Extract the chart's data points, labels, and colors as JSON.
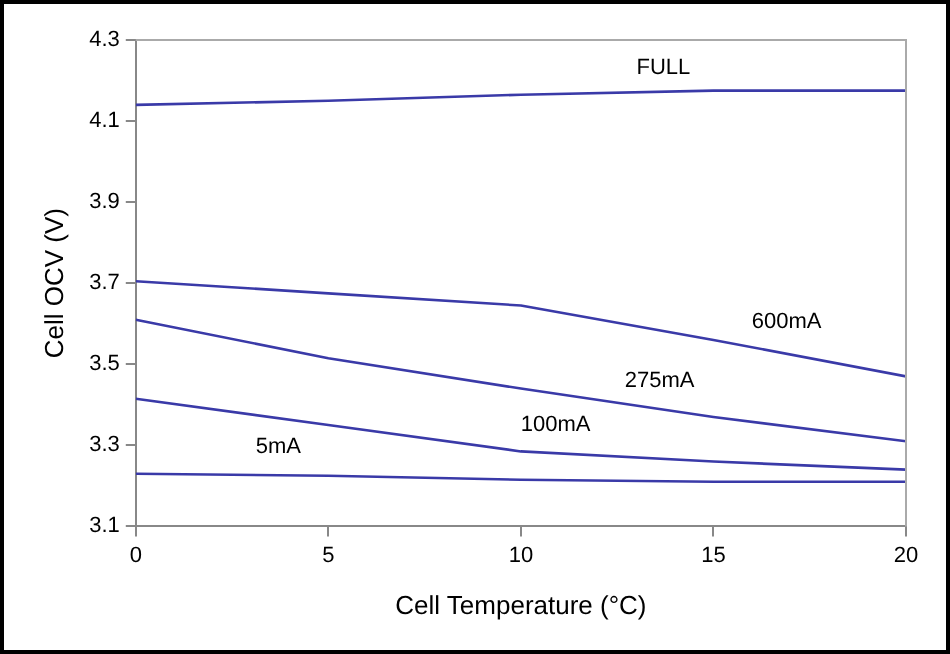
{
  "chart_data": {
    "type": "line",
    "xlabel": "Cell Temperature (°C)",
    "ylabel": "Cell OCV (V)",
    "x": [
      0,
      5,
      10,
      15,
      20
    ],
    "series": [
      {
        "name": "FULL",
        "color": "#3a3aa8",
        "values": [
          4.14,
          4.15,
          4.165,
          4.175,
          4.175
        ]
      },
      {
        "name": "600mA",
        "color": "#3a3aa8",
        "values": [
          3.705,
          3.675,
          3.645,
          3.56,
          3.47
        ]
      },
      {
        "name": "275mA",
        "color": "#3a3aa8",
        "values": [
          3.61,
          3.515,
          3.44,
          3.37,
          3.31
        ]
      },
      {
        "name": "100mA",
        "color": "#3a3aa8",
        "values": [
          3.415,
          3.35,
          3.285,
          3.26,
          3.24
        ]
      },
      {
        "name": "5mA",
        "color": "#3a3aa8",
        "values": [
          3.23,
          3.225,
          3.215,
          3.21,
          3.21
        ]
      }
    ],
    "xlim": [
      0,
      20
    ],
    "xticks": [
      0,
      5,
      10,
      15,
      20
    ],
    "ylim": [
      3.1,
      4.3
    ],
    "yticks": [
      3.1,
      3.3,
      3.5,
      3.7,
      3.9,
      4.1,
      4.3
    ],
    "grid": false,
    "legend": false,
    "marker": "none",
    "line_style": "solid"
  }
}
